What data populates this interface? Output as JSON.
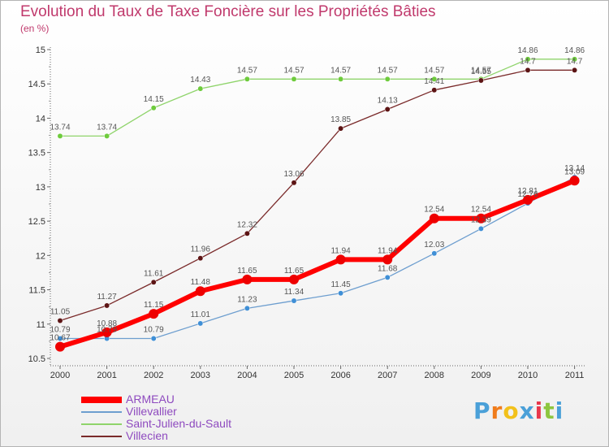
{
  "title": "Evolution du Taux de Taxe Foncière sur les Propriétés Bâties",
  "subtitle": "(en %)",
  "logo": {
    "text": "Proxiti",
    "letters": [
      "P",
      "r",
      "o",
      "x",
      "i",
      "t",
      "i"
    ],
    "colors": [
      "#4aa0d8",
      "#f07c1c",
      "#f2c11b",
      "#4aa0d8",
      "#e8384c",
      "#8dc63f",
      "#4aa0d8"
    ]
  },
  "chart_data": {
    "type": "line",
    "title": "Evolution du Taux de Taxe Foncière sur les Propriétés Bâties",
    "ylabel": "(en %)",
    "xlabel": "",
    "categories": [
      "2000",
      "2001",
      "2002",
      "2003",
      "2004",
      "2005",
      "2006",
      "2007",
      "2008",
      "2009",
      "2010",
      "2011"
    ],
    "ylim": [
      10.5,
      15
    ],
    "yticks": [
      "10.5",
      "11",
      "11.5",
      "12",
      "12.5",
      "13",
      "13.5",
      "14",
      "14.5",
      "15"
    ],
    "grid": false,
    "legend_position": "bottom-left",
    "series": [
      {
        "name": "Villevallier",
        "color": "#6d9ecf",
        "marker_color": "#3f8fd6",
        "values": [
          10.79,
          10.79,
          10.79,
          11.01,
          11.23,
          11.34,
          11.45,
          11.68,
          12.03,
          12.39,
          12.76,
          13.14
        ],
        "labels": [
          "10.79",
          "10.79",
          "10.79",
          "11.01",
          "11.23",
          "11.34",
          "11.45",
          "11.68",
          "12.03",
          "12.39",
          "12.76",
          "13.14"
        ]
      },
      {
        "name": "Saint-Julien-du-Sault",
        "color": "#8fd46b",
        "marker_color": "#6ecb3c",
        "values": [
          13.74,
          13.74,
          14.15,
          14.43,
          14.57,
          14.57,
          14.57,
          14.57,
          14.57,
          14.57,
          14.86,
          14.86
        ],
        "labels": [
          "13.74",
          "13.74",
          "14.15",
          "14.43",
          "14.57",
          "14.57",
          "14.57",
          "14.57",
          "14.57",
          "14.57",
          "14.86",
          "14.86"
        ]
      },
      {
        "name": "Villecien",
        "color": "#7a2a2a",
        "marker_color": "#5c1414",
        "values": [
          11.05,
          11.27,
          11.61,
          11.96,
          12.32,
          13.06,
          13.85,
          14.13,
          14.41,
          14.55,
          14.7,
          14.7
        ],
        "labels": [
          "11.05",
          "11.27",
          "11.61",
          "11.96",
          "12.32",
          "13.06",
          "13.85",
          "14.13",
          "14.41",
          "14.55",
          "14.7",
          "14.7"
        ]
      },
      {
        "name": "ARMEAU",
        "color": "#ff0000",
        "marker_color": "#ee0000",
        "values": [
          10.67,
          10.88,
          11.15,
          11.48,
          11.65,
          11.65,
          11.94,
          11.94,
          12.54,
          12.54,
          12.81,
          13.09
        ],
        "labels": [
          "10.67",
          "10.88",
          "11.15",
          "11.48",
          "11.65",
          "11.65",
          "11.94",
          "11.94",
          "12.54",
          "12.54",
          "12.81",
          "13.09"
        ]
      }
    ],
    "legend": [
      {
        "name": "ARMEAU",
        "color": "#ff0000",
        "thick": true
      },
      {
        "name": "Villevallier",
        "color": "#6d9ecf",
        "thick": false
      },
      {
        "name": "Saint-Julien-du-Sault",
        "color": "#8fd46b",
        "thick": false
      },
      {
        "name": "Villecien",
        "color": "#7a2a2a",
        "thick": false
      }
    ]
  }
}
